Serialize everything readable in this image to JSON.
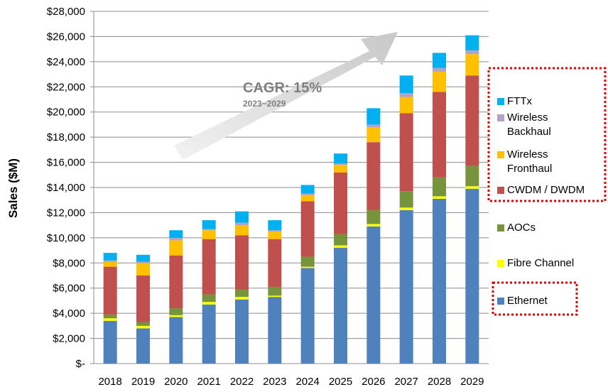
{
  "chart_data": {
    "type": "stacked-bar",
    "y_label": "Sales ($M)",
    "annotations": [
      "CAGR: 15%",
      "2023~2029"
    ],
    "categories": [
      "2018",
      "2019",
      "2020",
      "2021",
      "2022",
      "2023",
      "2024",
      "2025",
      "2026",
      "2027",
      "2028",
      "2029"
    ],
    "series": [
      {
        "name": "Ethernet",
        "color": "#4f81bd",
        "values": [
          3400,
          2800,
          3700,
          4700,
          5100,
          5300,
          7600,
          9200,
          10900,
          12200,
          13100,
          13900
        ]
      },
      {
        "name": "Fibre Channel",
        "color": "#ffff00",
        "values": [
          200,
          200,
          150,
          200,
          200,
          100,
          100,
          200,
          200,
          200,
          200,
          200
        ]
      },
      {
        "name": "AOCs",
        "color": "#77933c",
        "values": [
          300,
          300,
          550,
          600,
          600,
          700,
          800,
          900,
          1100,
          1300,
          1500,
          1600
        ]
      },
      {
        "name": "CWDM / DWDM",
        "color": "#c0504d",
        "values": [
          3800,
          3700,
          4200,
          4400,
          4300,
          3800,
          4400,
          4900,
          5400,
          6200,
          6800,
          7200
        ]
      },
      {
        "name": "Wireless Fronthaul",
        "color": "#ffc000",
        "values": [
          400,
          1000,
          1200,
          700,
          800,
          600,
          500,
          600,
          1200,
          1300,
          1600,
          1700
        ]
      },
      {
        "name": "Wireless Backhaul",
        "color": "#b3a2c7",
        "values": [
          100,
          100,
          200,
          100,
          200,
          100,
          100,
          100,
          200,
          300,
          300,
          300
        ]
      },
      {
        "name": "FTTx",
        "color": "#00b0f0",
        "values": [
          600,
          550,
          600,
          700,
          900,
          800,
          700,
          800,
          1300,
          1400,
          1200,
          1200
        ]
      }
    ],
    "ylim": [
      0,
      28000
    ],
    "yticks": [
      {
        "value": 0,
        "label": "$-"
      },
      {
        "value": 2000,
        "label": "$2,000"
      },
      {
        "value": 4000,
        "label": "$4,000"
      },
      {
        "value": 6000,
        "label": "$6,000"
      },
      {
        "value": 8000,
        "label": "$8,000"
      },
      {
        "value": 10000,
        "label": "$10,000"
      },
      {
        "value": 12000,
        "label": "$12,000"
      },
      {
        "value": 14000,
        "label": "$14,000"
      },
      {
        "value": 16000,
        "label": "$16,000"
      },
      {
        "value": 18000,
        "label": "$18,000"
      },
      {
        "value": 20000,
        "label": "$20,000"
      },
      {
        "value": 22000,
        "label": "$22,000"
      },
      {
        "value": 24000,
        "label": "$24,000"
      },
      {
        "value": 26000,
        "label": "$26,000"
      },
      {
        "value": 28000,
        "label": "$28,000"
      }
    ],
    "grid": true
  }
}
